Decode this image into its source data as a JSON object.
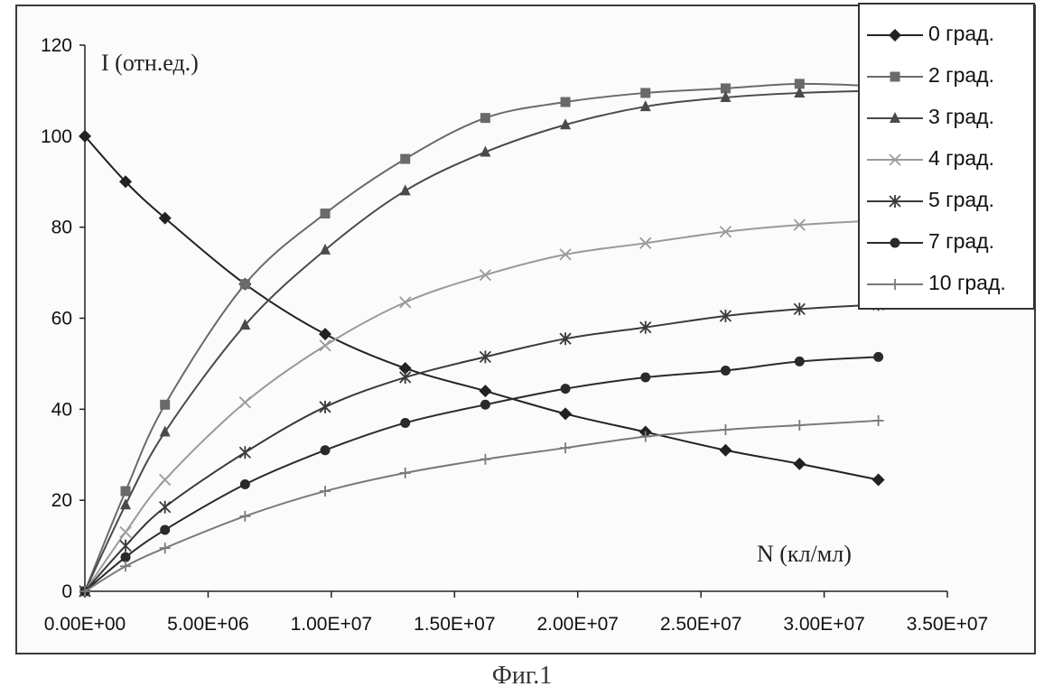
{
  "caption": "Фиг.1",
  "chart_data": {
    "type": "line",
    "title": "",
    "ylabel": "I (отн.ед.)",
    "xlabel": "N (кл/мл)",
    "xlim": [
      0,
      35000000
    ],
    "ylim": [
      0,
      120
    ],
    "grid": false,
    "legend_position": "top-right",
    "x_tick_labels": [
      "0.00E+00",
      "5.00E+06",
      "1.00E+07",
      "1.50E+07",
      "2.00E+07",
      "2.50E+07",
      "3.00E+07",
      "3.50E+07"
    ],
    "y_tick_labels": [
      "0",
      "20",
      "40",
      "60",
      "80",
      "100",
      "120"
    ],
    "x": [
      0,
      1650000,
      3250000,
      6500000,
      9750000,
      13000000,
      16250000,
      19500000,
      22750000,
      26000000,
      29000000,
      32200000
    ],
    "series": [
      {
        "name": "0 град.",
        "marker": "diamond",
        "color": "#222222",
        "values": [
          100,
          90,
          82,
          67.5,
          56.5,
          49,
          44,
          39,
          35,
          31,
          28,
          24.5
        ]
      },
      {
        "name": "2 град.",
        "marker": "square",
        "color": "#6a6a6a",
        "values": [
          0,
          22,
          41,
          67.5,
          83,
          95,
          104,
          107.5,
          109.5,
          110.5,
          111.5,
          111
        ]
      },
      {
        "name": "3 град.",
        "marker": "triangle",
        "color": "#4a4a4a",
        "values": [
          0,
          19,
          35,
          58.5,
          75,
          88,
          96.5,
          102.5,
          106.5,
          108.5,
          109.5,
          110
        ]
      },
      {
        "name": "4 град.",
        "marker": "x",
        "color": "#9a9a9a",
        "values": [
          0,
          13,
          24.5,
          41.5,
          54,
          63.5,
          69.5,
          74,
          76.5,
          79,
          80.5,
          81.5
        ]
      },
      {
        "name": "5 град.",
        "marker": "star",
        "color": "#3a3a3a",
        "values": [
          0,
          10,
          18.5,
          30.5,
          40.5,
          47,
          51.5,
          55.5,
          58,
          60.5,
          62,
          63
        ]
      },
      {
        "name": "7 град.",
        "marker": "circle",
        "color": "#2a2a2a",
        "values": [
          0,
          7.5,
          13.5,
          23.5,
          31,
          37,
          41,
          44.5,
          47,
          48.5,
          50.5,
          51.5
        ]
      },
      {
        "name": "10 град.",
        "marker": "plus",
        "color": "#7a7a7a",
        "values": [
          0,
          5.5,
          9.5,
          16.5,
          22,
          26,
          29,
          31.5,
          34,
          35.5,
          36.5,
          37.5
        ]
      }
    ]
  }
}
